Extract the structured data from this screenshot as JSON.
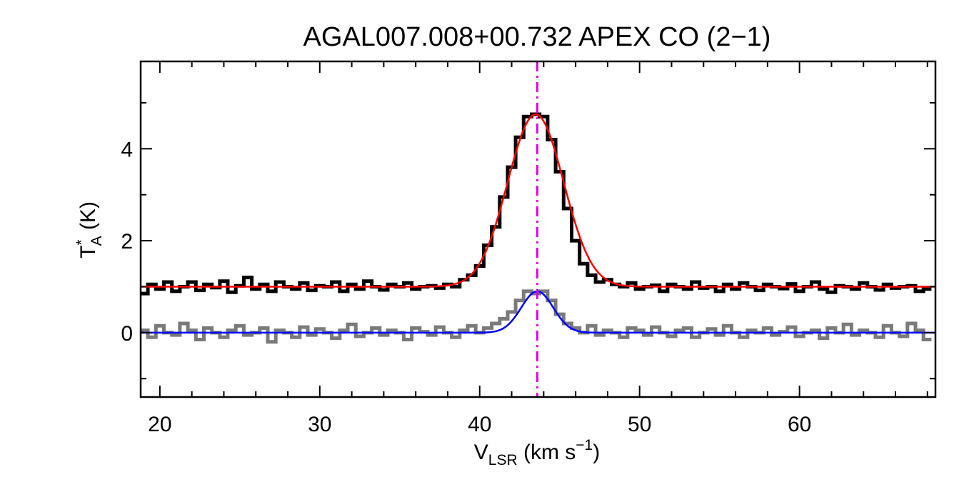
{
  "chart_data": {
    "type": "line",
    "title": "AGAL007.008+00.732  APEX CO (2−1)",
    "xlabel": {
      "main": "V",
      "sub": "LSR",
      "units": " (km s",
      "exp": "−1",
      "close": ")"
    },
    "ylabel": {
      "main": "T",
      "sup": "*",
      "sub": "A",
      "units": " (K)"
    },
    "xlim": [
      18.8,
      68.5
    ],
    "ylim": [
      -1.4,
      5.9
    ],
    "xticks": [
      20,
      30,
      40,
      50,
      60
    ],
    "xtick_labels": [
      "20",
      "30",
      "40",
      "50",
      "60"
    ],
    "yticks": [
      0,
      2,
      4
    ],
    "ytick_labels": [
      "0",
      "2",
      "4"
    ],
    "vline": {
      "x": 43.6,
      "color": "#e600e6",
      "style": "dash-dot"
    },
    "series": [
      {
        "name": "spectrum-black",
        "kind": "histogram",
        "color": "#000000",
        "x": [
          19.0,
          19.5,
          20.0,
          20.5,
          21.0,
          21.5,
          22.0,
          22.5,
          23.0,
          23.5,
          24.0,
          24.5,
          25.0,
          25.5,
          26.0,
          26.5,
          27.0,
          27.5,
          28.0,
          28.5,
          29.0,
          29.5,
          30.0,
          30.5,
          31.0,
          31.5,
          32.0,
          32.5,
          33.0,
          33.5,
          34.0,
          34.5,
          35.0,
          35.5,
          36.0,
          36.5,
          37.0,
          37.5,
          38.0,
          38.5,
          39.0,
          39.5,
          40.0,
          40.5,
          41.0,
          41.5,
          42.0,
          42.5,
          43.0,
          43.5,
          44.0,
          44.5,
          45.0,
          45.5,
          46.0,
          46.5,
          47.0,
          47.5,
          48.0,
          48.5,
          49.0,
          49.5,
          50.0,
          50.5,
          51.0,
          51.5,
          52.0,
          52.5,
          53.0,
          53.5,
          54.0,
          54.5,
          55.0,
          55.5,
          56.0,
          56.5,
          57.0,
          57.5,
          58.0,
          58.5,
          59.0,
          59.5,
          60.0,
          60.5,
          61.0,
          61.5,
          62.0,
          62.5,
          63.0,
          63.5,
          64.0,
          64.5,
          65.0,
          65.5,
          66.0,
          66.5,
          67.0,
          67.5,
          68.0
        ],
        "y": [
          0.85,
          1.05,
          0.95,
          1.1,
          0.9,
          1.0,
          1.1,
          0.92,
          1.05,
          0.98,
          1.12,
          0.88,
          1.02,
          1.2,
          0.95,
          1.05,
          0.9,
          1.1,
          1.0,
          0.95,
          1.08,
          0.92,
          1.02,
          1.0,
          1.1,
          0.9,
          1.05,
          0.95,
          1.12,
          1.0,
          0.93,
          1.05,
          1.0,
          1.08,
          0.95,
          1.0,
          1.02,
          0.97,
          1.05,
          1.0,
          1.15,
          1.25,
          1.45,
          1.9,
          2.3,
          2.95,
          3.6,
          4.25,
          4.7,
          4.75,
          4.7,
          4.2,
          3.5,
          2.7,
          2.0,
          1.5,
          1.25,
          1.1,
          1.15,
          1.05,
          1.0,
          1.08,
          0.95,
          1.0,
          1.03,
          0.9,
          1.05,
          1.0,
          0.95,
          1.1,
          0.97,
          1.0,
          0.9,
          1.05,
          0.95,
          1.08,
          1.0,
          0.92,
          1.05,
          1.0,
          0.96,
          1.06,
          0.9,
          1.0,
          1.1,
          0.95,
          0.88,
          1.02,
          1.0,
          0.95,
          1.08,
          1.0,
          0.93,
          1.05,
          0.97,
          1.0,
          1.02,
          0.9,
          0.95
        ]
      },
      {
        "name": "spectrum-gray",
        "kind": "histogram",
        "color": "#7a7a7a",
        "x": [
          19.0,
          19.5,
          20.0,
          20.5,
          21.0,
          21.5,
          22.0,
          22.5,
          23.0,
          23.5,
          24.0,
          24.5,
          25.0,
          25.5,
          26.0,
          26.5,
          27.0,
          27.5,
          28.0,
          28.5,
          29.0,
          29.5,
          30.0,
          30.5,
          31.0,
          31.5,
          32.0,
          32.5,
          33.0,
          33.5,
          34.0,
          34.5,
          35.0,
          35.5,
          36.0,
          36.5,
          37.0,
          37.5,
          38.0,
          38.5,
          39.0,
          39.5,
          40.0,
          40.5,
          41.0,
          41.5,
          42.0,
          42.5,
          43.0,
          43.5,
          44.0,
          44.5,
          45.0,
          45.5,
          46.0,
          46.5,
          47.0,
          47.5,
          48.0,
          48.5,
          49.0,
          49.5,
          50.0,
          50.5,
          51.0,
          51.5,
          52.0,
          52.5,
          53.0,
          53.5,
          54.0,
          54.5,
          55.0,
          55.5,
          56.0,
          56.5,
          57.0,
          57.5,
          58.0,
          58.5,
          59.0,
          59.5,
          60.0,
          60.5,
          61.0,
          61.5,
          62.0,
          62.5,
          63.0,
          63.5,
          64.0,
          64.5,
          65.0,
          65.5,
          66.0,
          66.5,
          67.0,
          67.5,
          68.0
        ],
        "y": [
          0.05,
          -0.1,
          0.15,
          0.0,
          -0.05,
          0.2,
          0.05,
          -0.15,
          0.1,
          0.0,
          -0.1,
          0.05,
          0.15,
          -0.05,
          0.0,
          0.1,
          -0.2,
          0.05,
          0.0,
          -0.1,
          0.12,
          -0.05,
          0.08,
          0.0,
          -0.12,
          0.05,
          0.18,
          -0.08,
          0.0,
          0.1,
          -0.05,
          0.05,
          0.0,
          -0.15,
          0.1,
          0.02,
          -0.05,
          0.12,
          0.0,
          -0.1,
          0.05,
          0.15,
          0.0,
          0.1,
          0.2,
          0.3,
          0.45,
          0.7,
          0.9,
          0.85,
          0.9,
          0.7,
          0.4,
          0.2,
          0.1,
          0.0,
          0.15,
          -0.05,
          0.05,
          0.0,
          -0.1,
          0.1,
          0.05,
          -0.05,
          0.12,
          0.0,
          -0.08,
          0.05,
          0.1,
          -0.1,
          0.0,
          0.08,
          -0.05,
          0.15,
          0.0,
          -0.1,
          0.05,
          0.0,
          0.1,
          -0.05,
          0.02,
          0.12,
          -0.08,
          0.0,
          0.05,
          -0.12,
          0.1,
          0.0,
          0.18,
          -0.05,
          0.05,
          0.0,
          -0.1,
          0.15,
          0.0,
          -0.08,
          0.2,
          0.05,
          -0.15
        ]
      },
      {
        "name": "fit-red",
        "kind": "gaussian",
        "color": "#ff0000",
        "baseline": 1.0,
        "amplitude": 3.75,
        "center": 43.5,
        "sigma": 1.75
      },
      {
        "name": "fit-blue",
        "kind": "gaussian",
        "color": "#0000ff",
        "baseline": 0.0,
        "amplitude": 0.9,
        "center": 43.6,
        "sigma": 1.0
      }
    ]
  }
}
